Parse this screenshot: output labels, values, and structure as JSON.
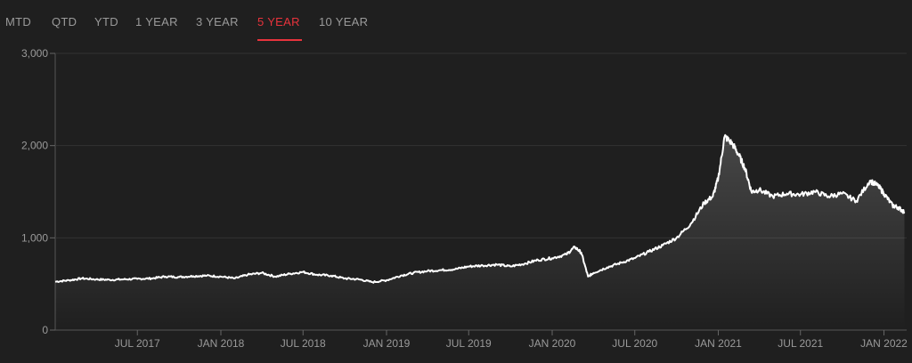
{
  "tabs": [
    {
      "label": "MTD",
      "active": false
    },
    {
      "label": "QTD",
      "active": false
    },
    {
      "label": "YTD",
      "active": false
    },
    {
      "label": "1 YEAR",
      "active": false
    },
    {
      "label": "3 YEAR",
      "active": false
    },
    {
      "label": "5 YEAR",
      "active": true
    },
    {
      "label": "10 YEAR",
      "active": false
    }
  ],
  "colors": {
    "background": "#1f1f1f",
    "line": "#ffffff",
    "active_tab": "#e8333c",
    "inactive_tab": "#9a9a9a",
    "grid": "#333333"
  },
  "chart_data": {
    "type": "area",
    "title": "",
    "xlabel": "",
    "ylabel": "",
    "ylim": [
      0,
      3000
    ],
    "xlim": [
      "2017-01-01",
      "2022-02-20"
    ],
    "yticks": [
      {
        "value": 0,
        "label": "0"
      },
      {
        "value": 1000,
        "label": "1,000"
      },
      {
        "value": 2000,
        "label": "2,000"
      },
      {
        "value": 3000,
        "label": "3,000"
      }
    ],
    "xticks": [
      {
        "date": "2017-07-01",
        "label": "JUL 2017"
      },
      {
        "date": "2018-01-01",
        "label": "JAN 2018"
      },
      {
        "date": "2018-07-01",
        "label": "JUL 2018"
      },
      {
        "date": "2019-01-01",
        "label": "JAN 2019"
      },
      {
        "date": "2019-07-01",
        "label": "JUL 2019"
      },
      {
        "date": "2020-01-01",
        "label": "JAN 2020"
      },
      {
        "date": "2020-07-01",
        "label": "JUL 2020"
      },
      {
        "date": "2021-01-01",
        "label": "JAN 2021"
      },
      {
        "date": "2021-07-01",
        "label": "JUL 2021"
      },
      {
        "date": "2022-01-01",
        "label": "JAN 2022"
      }
    ],
    "grid": true,
    "series": [
      {
        "points": [
          [
            "2017-01-01",
            525
          ],
          [
            "2017-02-01",
            540
          ],
          [
            "2017-03-01",
            560
          ],
          [
            "2017-04-01",
            550
          ],
          [
            "2017-05-01",
            545
          ],
          [
            "2017-06-01",
            550
          ],
          [
            "2017-07-01",
            555
          ],
          [
            "2017-08-01",
            560
          ],
          [
            "2017-09-01",
            580
          ],
          [
            "2017-10-01",
            575
          ],
          [
            "2017-11-01",
            585
          ],
          [
            "2017-12-01",
            590
          ],
          [
            "2018-01-01",
            580
          ],
          [
            "2018-02-01",
            560
          ],
          [
            "2018-03-01",
            600
          ],
          [
            "2018-04-01",
            620
          ],
          [
            "2018-05-01",
            580
          ],
          [
            "2018-06-01",
            610
          ],
          [
            "2018-07-01",
            630
          ],
          [
            "2018-08-01",
            600
          ],
          [
            "2018-09-01",
            590
          ],
          [
            "2018-10-01",
            560
          ],
          [
            "2018-11-01",
            550
          ],
          [
            "2018-12-01",
            520
          ],
          [
            "2019-01-01",
            540
          ],
          [
            "2019-02-01",
            590
          ],
          [
            "2019-03-01",
            620
          ],
          [
            "2019-04-01",
            640
          ],
          [
            "2019-05-01",
            650
          ],
          [
            "2019-06-01",
            660
          ],
          [
            "2019-07-01",
            690
          ],
          [
            "2019-08-01",
            700
          ],
          [
            "2019-09-01",
            710
          ],
          [
            "2019-10-01",
            690
          ],
          [
            "2019-11-01",
            720
          ],
          [
            "2019-12-01",
            760
          ],
          [
            "2020-01-01",
            780
          ],
          [
            "2020-02-01",
            820
          ],
          [
            "2020-02-20",
            900
          ],
          [
            "2020-03-05",
            840
          ],
          [
            "2020-03-20",
            580
          ],
          [
            "2020-04-01",
            620
          ],
          [
            "2020-05-01",
            680
          ],
          [
            "2020-06-01",
            730
          ],
          [
            "2020-07-01",
            780
          ],
          [
            "2020-08-01",
            850
          ],
          [
            "2020-09-01",
            920
          ],
          [
            "2020-10-01",
            1000
          ],
          [
            "2020-11-01",
            1150
          ],
          [
            "2020-12-01",
            1380
          ],
          [
            "2020-12-20",
            1450
          ],
          [
            "2021-01-01",
            1650
          ],
          [
            "2021-01-15",
            2100
          ],
          [
            "2021-02-01",
            2020
          ],
          [
            "2021-02-15",
            1900
          ],
          [
            "2021-03-01",
            1750
          ],
          [
            "2021-03-15",
            1500
          ],
          [
            "2021-04-01",
            1520
          ],
          [
            "2021-05-01",
            1450
          ],
          [
            "2021-06-01",
            1480
          ],
          [
            "2021-07-01",
            1470
          ],
          [
            "2021-08-01",
            1500
          ],
          [
            "2021-09-01",
            1450
          ],
          [
            "2021-10-01",
            1480
          ],
          [
            "2021-11-01",
            1400
          ],
          [
            "2021-12-01",
            1620
          ],
          [
            "2021-12-20",
            1560
          ],
          [
            "2022-01-01",
            1480
          ],
          [
            "2022-01-20",
            1350
          ],
          [
            "2022-02-01",
            1330
          ],
          [
            "2022-02-15",
            1280
          ]
        ]
      }
    ]
  }
}
